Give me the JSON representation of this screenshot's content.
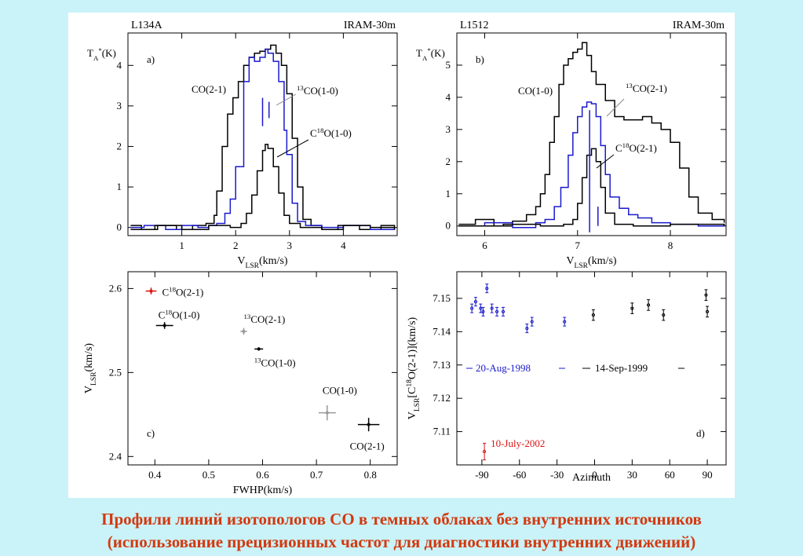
{
  "caption": {
    "line1": "Профили линий изотопологов CO в темных облаках без внутренних источников",
    "line2": "(использование прецизионных частот для диагностики внутренних движений)"
  },
  "colors": {
    "blue": "#1a1acc",
    "red": "#dd1111",
    "gray": "#999999",
    "black": "#000000"
  },
  "chart_data": [
    {
      "panel": "a",
      "type": "line",
      "source": "L134A",
      "telescope": "IRAM-30m",
      "panel_label": "a)",
      "xlabel_main": "V",
      "xlabel_sub": "LSR",
      "xlabel_rest": "(km/s)",
      "ylabel_main": "T",
      "ylabel_sub": "A",
      "ylabel_sup": "*",
      "ylabel_rest": "(K)",
      "xlim": [
        0,
        5
      ],
      "ylim": [
        -0.2,
        4.8
      ],
      "xticks": [
        1,
        2,
        3,
        4
      ],
      "yticks": [
        0,
        1,
        2,
        3,
        4
      ],
      "series": [
        {
          "name": "CO(2-1)",
          "color": "black",
          "x": [
            0.05,
            0.25,
            0.55,
            0.9,
            1.2,
            1.45,
            1.6,
            1.65,
            1.75,
            1.85,
            1.95,
            2.05,
            2.15,
            2.25,
            2.35,
            2.45,
            2.55,
            2.65,
            2.75,
            2.85,
            2.95,
            3.05,
            3.15,
            3.25,
            3.4,
            3.6,
            3.9,
            4.3,
            4.7,
            4.95
          ],
          "y": [
            0.05,
            -0.05,
            0.05,
            -0.05,
            0.05,
            0.1,
            0.3,
            0.9,
            2.0,
            2.8,
            3.2,
            3.6,
            4.0,
            4.2,
            4.3,
            4.35,
            4.4,
            4.5,
            4.3,
            4.0,
            3.3,
            2.2,
            1.0,
            0.2,
            0.05,
            -0.05,
            0.05,
            -0.05,
            0.05,
            0.0
          ]
        },
        {
          "name": "13CO(1-0)",
          "color": "blue",
          "label_mass": "13",
          "label_rest": "CO(1-0)",
          "x": [
            0.05,
            0.3,
            0.7,
            1.0,
            1.3,
            1.5,
            1.65,
            1.8,
            1.9,
            2.0,
            2.15,
            2.25,
            2.35,
            2.45,
            2.55,
            2.6,
            2.7,
            2.8,
            2.9,
            2.95,
            3.05,
            3.15,
            3.3,
            3.6,
            4.0,
            4.5,
            4.95
          ],
          "y": [
            0.0,
            0.05,
            -0.05,
            0.05,
            0.0,
            0.05,
            0.1,
            0.35,
            0.7,
            1.5,
            3.6,
            4.2,
            4.1,
            4.2,
            4.4,
            4.3,
            4.1,
            3.6,
            2.4,
            1.8,
            0.6,
            0.15,
            0.05,
            0.0,
            0.05,
            -0.05,
            0.0
          ]
        },
        {
          "name": "C18O(1-0)",
          "color": "black",
          "label_pre": "C",
          "label_mass": "18",
          "label_rest": "O(1-0)",
          "x": [
            0.05,
            0.5,
            1.0,
            1.5,
            1.9,
            2.1,
            2.2,
            2.3,
            2.4,
            2.5,
            2.55,
            2.6,
            2.7,
            2.8,
            2.9,
            3.0,
            3.2,
            3.6,
            4.0,
            4.5,
            4.95
          ],
          "y": [
            -0.05,
            0.05,
            -0.05,
            0.05,
            0.0,
            0.1,
            0.35,
            0.8,
            1.4,
            1.9,
            2.05,
            1.95,
            1.5,
            0.85,
            0.3,
            0.1,
            0.0,
            -0.05,
            0.05,
            0.0,
            -0.05
          ]
        }
      ],
      "markers": [
        {
          "x": 2.5,
          "y0": 2.5,
          "y1": 3.2
        },
        {
          "x": 2.62,
          "y0": 2.7,
          "y1": 3.1
        }
      ]
    },
    {
      "panel": "b",
      "type": "line",
      "source": "L1512",
      "telescope": "IRAM-30m",
      "panel_label": "b)",
      "xlabel_main": "V",
      "xlabel_sub": "LSR",
      "xlabel_rest": "(km/s)",
      "ylabel_main": "T",
      "ylabel_sub": "A",
      "ylabel_sup": "*",
      "ylabel_rest": "(K)",
      "xlim": [
        5.7,
        8.6
      ],
      "ylim": [
        -0.3,
        6.0
      ],
      "xticks": [
        6,
        7,
        8
      ],
      "yticks": [
        0,
        1,
        2,
        3,
        4,
        5
      ],
      "series": [
        {
          "name": "CO(1-0)",
          "color": "black",
          "x": [
            5.72,
            5.9,
            6.1,
            6.3,
            6.45,
            6.55,
            6.6,
            6.65,
            6.7,
            6.75,
            6.8,
            6.85,
            6.9,
            6.95,
            7.0,
            7.05,
            7.1,
            7.15,
            7.2,
            7.3,
            7.4,
            7.5,
            7.6,
            7.7,
            7.8,
            7.9,
            8.0,
            8.1,
            8.2,
            8.3,
            8.45,
            8.58
          ],
          "y": [
            0.05,
            0.2,
            0.0,
            0.15,
            0.35,
            0.6,
            1.0,
            1.6,
            2.6,
            3.4,
            4.4,
            5.0,
            5.2,
            5.4,
            5.5,
            5.7,
            5.3,
            4.8,
            4.4,
            3.9,
            3.4,
            3.3,
            3.3,
            3.4,
            3.2,
            3.0,
            2.6,
            1.8,
            0.9,
            0.4,
            0.2,
            0.1
          ]
        },
        {
          "name": "13CO(2-1)",
          "color": "blue",
          "label_mass": "13",
          "label_rest": "CO(2-1)",
          "x": [
            5.72,
            6.0,
            6.3,
            6.55,
            6.65,
            6.75,
            6.82,
            6.9,
            6.95,
            7.0,
            7.05,
            7.1,
            7.15,
            7.2,
            7.25,
            7.3,
            7.35,
            7.45,
            7.55,
            7.65,
            7.8,
            8.0,
            8.3,
            8.58
          ],
          "y": [
            0.0,
            0.1,
            -0.05,
            0.1,
            0.2,
            0.6,
            1.2,
            2.2,
            2.9,
            3.4,
            3.7,
            3.85,
            3.8,
            3.4,
            2.5,
            1.6,
            0.9,
            0.55,
            0.35,
            0.25,
            0.1,
            0.05,
            0.0,
            0.05
          ]
        },
        {
          "name": "C18O(2-1)",
          "color": "black",
          "label_pre": "C",
          "label_mass": "18",
          "label_rest": "O(2-1)",
          "x": [
            5.72,
            6.2,
            6.6,
            6.85,
            6.95,
            7.0,
            7.05,
            7.1,
            7.15,
            7.2,
            7.25,
            7.3,
            7.4,
            7.6,
            8.0,
            8.58
          ],
          "y": [
            0.0,
            0.05,
            0.0,
            0.05,
            0.2,
            0.7,
            1.5,
            2.2,
            2.4,
            2.0,
            1.2,
            0.4,
            0.05,
            0.0,
            0.05,
            0.0
          ]
        }
      ],
      "markers": [
        {
          "x": 7.13,
          "y0": -0.2,
          "y1": 3.6
        },
        {
          "x": 7.22,
          "y0": 0.0,
          "y1": 0.6
        }
      ]
    },
    {
      "panel": "c",
      "type": "scatter",
      "panel_label": "c)",
      "xlabel": "FWHP(km/s)",
      "ylabel_main": "V",
      "ylabel_sub": "LSR",
      "ylabel_rest": "(km/s)",
      "xlim": [
        0.35,
        0.85
      ],
      "ylim": [
        2.39,
        2.62
      ],
      "xticks": [
        0.4,
        0.5,
        0.6,
        0.7,
        0.8
      ],
      "yticks": [
        2.4,
        2.5,
        2.6
      ],
      "points": [
        {
          "label_pre": "C",
          "label_mass": "18",
          "label_rest": "O(2-1)",
          "x": 0.393,
          "y": 2.597,
          "xerr": 0.01,
          "yerr": 0.004,
          "color": "red"
        },
        {
          "label_pre": "C",
          "label_mass": "18",
          "label_rest": "O(1-0)",
          "x": 0.418,
          "y": 2.556,
          "xerr": 0.016,
          "yerr": 0.004,
          "color": "black"
        },
        {
          "label_pre": "",
          "label_mass": "13",
          "label_rest": "CO(2-1)",
          "x": 0.565,
          "y": 2.549,
          "xerr": 0.006,
          "yerr": 0.004,
          "color": "gray"
        },
        {
          "label_pre": "",
          "label_mass": "13",
          "label_rest": "CO(1-0)",
          "x": 0.593,
          "y": 2.528,
          "xerr": 0.008,
          "yerr": 0.002,
          "color": "black"
        },
        {
          "label_pre": "",
          "label_mass": "",
          "label_rest": "CO(1-0)",
          "x": 0.72,
          "y": 2.452,
          "xerr": 0.016,
          "yerr": 0.009,
          "color": "gray"
        },
        {
          "label_pre": "",
          "label_mass": "",
          "label_rest": "CO(2-1)",
          "x": 0.797,
          "y": 2.438,
          "xerr": 0.02,
          "yerr": 0.008,
          "color": "black"
        }
      ]
    },
    {
      "panel": "d",
      "type": "scatter",
      "panel_label": "d)",
      "xlabel": "Azimuth",
      "ylabel_main": "V",
      "ylabel_sub": "LSR",
      "ylabel_rest1": "[C",
      "ylabel_sup": "18",
      "ylabel_rest2": "O(2-1)](km/s)",
      "xlim": [
        -110,
        105
      ],
      "ylim": [
        7.1,
        7.158
      ],
      "xticks": [
        -90,
        -60,
        -30,
        0,
        30,
        60,
        90
      ],
      "yticks": [
        7.11,
        7.12,
        7.13,
        7.14,
        7.15
      ],
      "series": [
        {
          "name": "20-Aug-1998",
          "color": "blue",
          "x": [
            -98,
            -95,
            -91,
            -89,
            -86,
            -82,
            -78,
            -73,
            -54,
            -50,
            -24
          ],
          "y": [
            7.147,
            7.149,
            7.147,
            7.146,
            7.153,
            7.147,
            7.146,
            7.146,
            7.141,
            7.143,
            7.143
          ],
          "yerr": 0.0013
        },
        {
          "name": "14-Sep-1999",
          "color": "black",
          "x": [
            -1,
            30,
            43,
            55,
            89,
            90
          ],
          "y": [
            7.145,
            7.147,
            7.148,
            7.145,
            7.151,
            7.146
          ],
          "yerr": 0.0016
        },
        {
          "name": "10-July-2002",
          "color": "red",
          "x": [
            -88
          ],
          "y": [
            7.104
          ],
          "yerr": 0.0025
        }
      ]
    }
  ]
}
